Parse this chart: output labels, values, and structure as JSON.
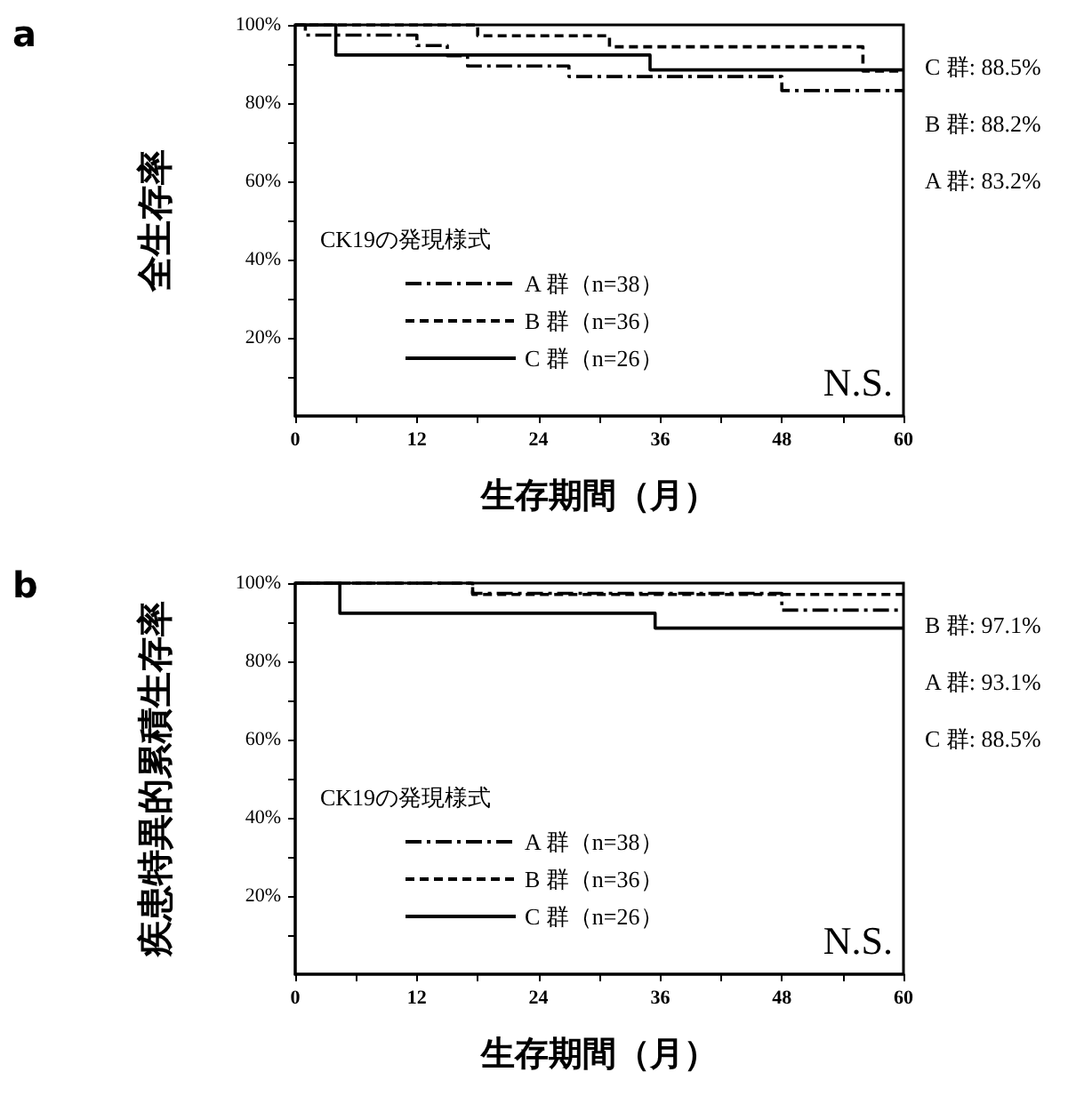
{
  "chart_data": [
    {
      "type": "step",
      "title": "a",
      "xlabel": "生存期間（月）",
      "ylabel": "全生存率",
      "legend_title": "CK19の発現様式",
      "xlim": [
        0,
        60
      ],
      "xticks": [
        0,
        {
          "value": 6,
          "label": null
        },
        12,
        {
          "value": 18,
          "label": null
        },
        24,
        {
          "value": 30,
          "label": null
        },
        36,
        {
          "value": 42,
          "label": null
        },
        48,
        {
          "value": 54,
          "label": null
        },
        60
      ],
      "ylim": [
        0,
        100
      ],
      "yticks": [
        {
          "value": 10,
          "label": null
        },
        {
          "value": 20,
          "label": "20%"
        },
        {
          "value": 30,
          "label": null
        },
        {
          "value": 40,
          "label": "40%"
        },
        {
          "value": 50,
          "label": null
        },
        {
          "value": 60,
          "label": "60%"
        },
        {
          "value": 70,
          "label": null
        },
        {
          "value": 80,
          "label": "80%"
        },
        {
          "value": 90,
          "label": null
        },
        {
          "value": 100,
          "label": "100%"
        }
      ],
      "series": [
        {
          "name": "A 群（n=38）",
          "color": "#000000",
          "line_style": "dashdot",
          "x": [
            0,
            1,
            12,
            15,
            17,
            27,
            48,
            60
          ],
          "values": [
            100,
            97.4,
            94.7,
            92.1,
            89.5,
            86.8,
            83.2,
            83.2
          ]
        },
        {
          "name": "B 群（n=36）",
          "color": "#000000",
          "line_style": "dashed",
          "x": [
            0,
            18,
            31,
            56,
            60
          ],
          "values": [
            100,
            97.2,
            94.4,
            88.2,
            88.2
          ]
        },
        {
          "name": "C 群（n=26）",
          "color": "#000000",
          "line_style": "solid",
          "x": [
            0,
            4,
            35,
            60
          ],
          "values": [
            100,
            92.3,
            88.5,
            88.5
          ]
        }
      ],
      "legend": "bottom left",
      "grid": false,
      "marker": "none",
      "annotations": [
        "C 群: 88.5%",
        "B 群: 88.2%",
        "A 群: 83.2%",
        "N.S."
      ]
    },
    {
      "type": "step",
      "title": "b",
      "xlabel": "生存期間（月）",
      "ylabel": "疾患特異的累積生存率",
      "legend_title": "CK19の発現様式",
      "xlim": [
        0,
        60
      ],
      "xticks": [
        0,
        {
          "value": 6,
          "label": null
        },
        12,
        {
          "value": 18,
          "label": null
        },
        24,
        {
          "value": 30,
          "label": null
        },
        36,
        {
          "value": 42,
          "label": null
        },
        48,
        {
          "value": 54,
          "label": null
        },
        60
      ],
      "ylim": [
        0,
        100
      ],
      "yticks": [
        {
          "value": 10,
          "label": null
        },
        {
          "value": 20,
          "label": "20%"
        },
        {
          "value": 30,
          "label": null
        },
        {
          "value": 40,
          "label": "40%"
        },
        {
          "value": 50,
          "label": null
        },
        {
          "value": 60,
          "label": "60%"
        },
        {
          "value": 70,
          "label": null
        },
        {
          "value": 80,
          "label": "80%"
        },
        {
          "value": 90,
          "label": null
        },
        {
          "value": 100,
          "label": "100%"
        }
      ],
      "series": [
        {
          "name": "A 群（n=38）",
          "color": "#000000",
          "line_style": "dashdot",
          "x": [
            0,
            17.5,
            48,
            60
          ],
          "values": [
            100,
            97.4,
            93.1,
            93.1
          ]
        },
        {
          "name": "B 群（n=36）",
          "color": "#000000",
          "line_style": "dashed",
          "x": [
            0,
            17.5,
            60
          ],
          "values": [
            100,
            97.1,
            97.1
          ]
        },
        {
          "name": "C 群（n=26）",
          "color": "#000000",
          "line_style": "solid",
          "x": [
            0,
            4.4,
            35.5,
            60
          ],
          "values": [
            100,
            92.3,
            88.5,
            88.5
          ]
        }
      ],
      "legend": "bottom left",
      "grid": false,
      "marker": "none",
      "annotations": [
        "B 群: 97.1%",
        "A 群: 93.1%",
        "C 群: 88.5%",
        "N.S."
      ]
    }
  ]
}
